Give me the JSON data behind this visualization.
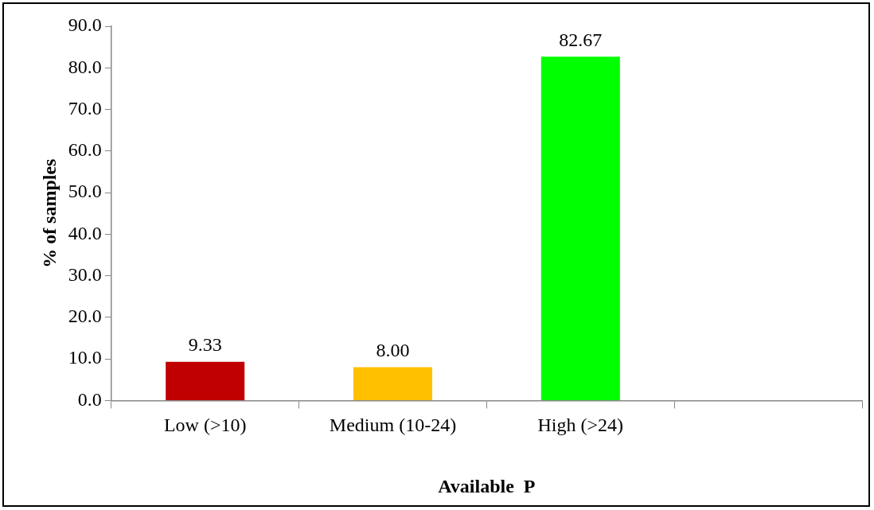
{
  "chart_data": {
    "type": "bar",
    "xlabel": "Available  P",
    "ylabel": "% of samples",
    "categories": [
      "Low (>10)",
      "Medium (10-24)",
      "High (>24)",
      null
    ],
    "values": [
      9.33,
      8.0,
      82.67,
      null
    ],
    "colors": [
      "#c00000",
      "#ffc000",
      "#00ff00",
      "#00ff00"
    ],
    "value_labels": [
      "9.33",
      "8.00",
      "82.67",
      null
    ],
    "ylim": [
      0,
      90
    ],
    "yticks": [
      {
        "value": 0,
        "label": "0.0"
      },
      {
        "value": 10,
        "label": "10.0"
      },
      {
        "value": 20,
        "label": "20.0"
      },
      {
        "value": 30,
        "label": "30.0"
      },
      {
        "value": 40,
        "label": "40.0"
      },
      {
        "value": 50,
        "label": "50.0"
      },
      {
        "value": 60,
        "label": "60.0"
      },
      {
        "value": 70,
        "label": "70.0"
      },
      {
        "value": 80,
        "label": "80.0"
      },
      {
        "value": 90,
        "label": "90.0"
      }
    ],
    "grid": false,
    "legend": false
  }
}
